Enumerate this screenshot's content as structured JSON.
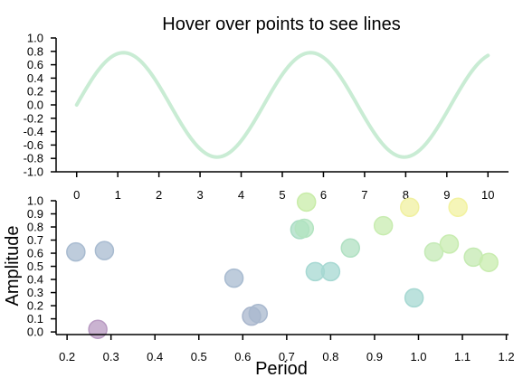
{
  "chart_data": [
    {
      "type": "line",
      "title": "Hover over points to see lines",
      "xlabel": "",
      "ylabel": "",
      "xlim": [
        -0.5,
        10.5
      ],
      "ylim": [
        -1.0,
        1.0
      ],
      "xticks": [
        "0",
        "1",
        "2",
        "3",
        "4",
        "5",
        "6",
        "7",
        "8",
        "9",
        "10"
      ],
      "yticks": [
        "1.0",
        "0.8",
        "0.6",
        "0.4",
        "0.2",
        "0.0",
        "-0.2",
        "-0.4",
        "-0.6",
        "-0.8",
        "-1.0"
      ],
      "curve": {
        "amplitude": 0.78,
        "period": 4.55,
        "phase": 0,
        "x_start": 0,
        "x_end": 10,
        "color": "#c9ecd4"
      }
    },
    {
      "type": "scatter",
      "title": "",
      "xlabel": "Period",
      "ylabel": "Amplitude",
      "xlim": [
        0.175,
        1.205
      ],
      "ylim": [
        -0.02,
        1.0
      ],
      "xticks": [
        "0.2",
        "0.3",
        "0.4",
        "0.5",
        "0.6",
        "0.7",
        "0.8",
        "0.9",
        "1.0",
        "1.1",
        "1.2"
      ],
      "yticks": [
        "0.0",
        "0.1",
        "0.2",
        "0.3",
        "0.4",
        "0.5",
        "0.6",
        "0.7",
        "0.8",
        "0.9",
        "1.0"
      ],
      "points": [
        {
          "x": 0.22,
          "y": 0.61,
          "color": "#a8bbd0"
        },
        {
          "x": 0.285,
          "y": 0.62,
          "color": "#a8bbd0"
        },
        {
          "x": 0.27,
          "y": 0.02,
          "color": "#b89ac2"
        },
        {
          "x": 0.58,
          "y": 0.41,
          "color": "#a8bbd0"
        },
        {
          "x": 0.62,
          "y": 0.12,
          "color": "#a8b5cc"
        },
        {
          "x": 0.635,
          "y": 0.14,
          "color": "#a8b8ce"
        },
        {
          "x": 0.73,
          "y": 0.78,
          "color": "#a9dcc4"
        },
        {
          "x": 0.74,
          "y": 0.79,
          "color": "#b3e4c0"
        },
        {
          "x": 0.745,
          "y": 0.99,
          "color": "#c8eca8"
        },
        {
          "x": 0.765,
          "y": 0.46,
          "color": "#a6d8d2"
        },
        {
          "x": 0.8,
          "y": 0.46,
          "color": "#a6d8d2"
        },
        {
          "x": 0.845,
          "y": 0.64,
          "color": "#b0e0c2"
        },
        {
          "x": 0.92,
          "y": 0.81,
          "color": "#c8ecb0"
        },
        {
          "x": 0.98,
          "y": 0.95,
          "color": "#f0f0a0"
        },
        {
          "x": 0.99,
          "y": 0.26,
          "color": "#a6d8d2"
        },
        {
          "x": 1.035,
          "y": 0.61,
          "color": "#c4eab6"
        },
        {
          "x": 1.07,
          "y": 0.67,
          "color": "#c8ecb0"
        },
        {
          "x": 1.09,
          "y": 0.95,
          "color": "#f2f2a0"
        },
        {
          "x": 1.125,
          "y": 0.57,
          "color": "#c4eab2"
        },
        {
          "x": 1.16,
          "y": 0.53,
          "color": "#c8ecae"
        }
      ]
    }
  ]
}
